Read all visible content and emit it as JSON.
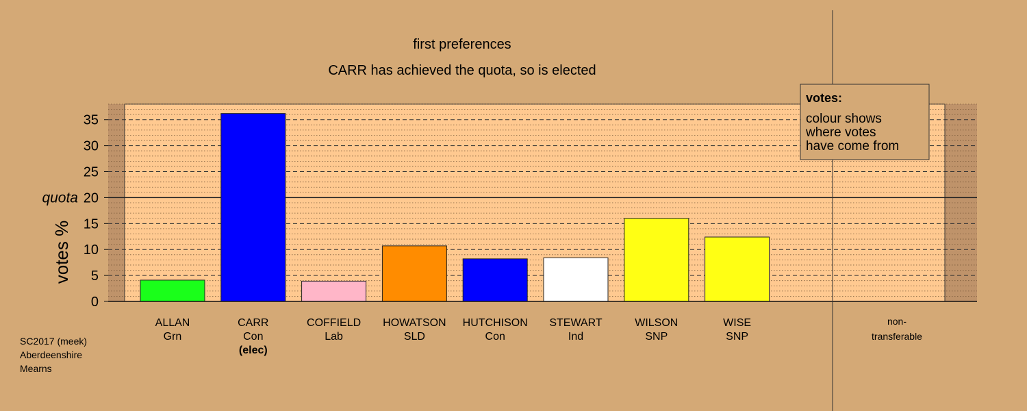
{
  "chart_data": {
    "type": "bar",
    "title": "first preferences",
    "subtitle": "CARR has achieved the quota, so is elected",
    "ylabel": "votes %",
    "ylim": [
      0,
      38
    ],
    "yticks": [
      0,
      5,
      10,
      15,
      20,
      25,
      30,
      35
    ],
    "quota": {
      "value": 20,
      "label": "quota"
    },
    "categories": [
      {
        "name": "ALLAN",
        "party": "Grn",
        "note": "",
        "value": 4.1,
        "color": "#1aff1a"
      },
      {
        "name": "CARR",
        "party": "Con",
        "note": "(elec)",
        "value": 36.2,
        "color": "#0000ff"
      },
      {
        "name": "COFFIELD",
        "party": "Lab",
        "note": "",
        "value": 3.9,
        "color": "#ffb6c8"
      },
      {
        "name": "HOWATSON",
        "party": "SLD",
        "note": "",
        "value": 10.7,
        "color": "#ff8c00"
      },
      {
        "name": "HUTCHISON",
        "party": "Con",
        "note": "",
        "value": 8.2,
        "color": "#0000ff"
      },
      {
        "name": "STEWART",
        "party": "Ind",
        "note": "",
        "value": 8.4,
        "color": "#ffffff"
      },
      {
        "name": "WILSON",
        "party": "SNP",
        "note": "",
        "value": 16.0,
        "color": "#ffff14"
      },
      {
        "name": "WISE",
        "party": "SNP",
        "note": "",
        "value": 12.4,
        "color": "#ffff14"
      }
    ],
    "nontransferable": {
      "label_line1": "non-",
      "label_line2": "transferable",
      "value": 0
    },
    "legend": {
      "title": "votes:",
      "lines": [
        "colour shows",
        "where votes",
        "have come from"
      ],
      "placement": "top-right"
    },
    "grid": true
  },
  "footer": {
    "lines": [
      "SC2017 (meek)",
      "Aberdeenshire",
      "Mearns"
    ]
  },
  "colors": {
    "background": "#d4a976",
    "plot_area": "#ffc990",
    "plot_area_shaded": "#bf936a"
  }
}
